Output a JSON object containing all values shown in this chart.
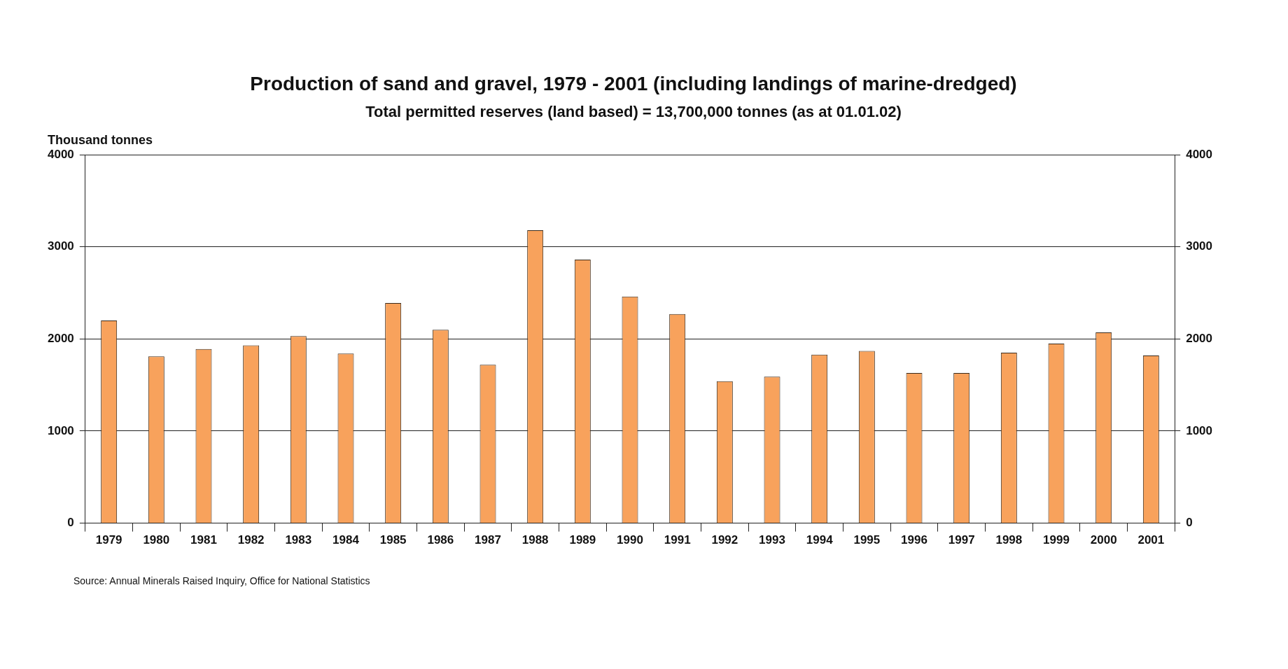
{
  "chart_data": {
    "type": "bar",
    "title": "Production of sand and gravel, 1979 - 2001 (including landings of marine-dredged)",
    "subtitle": "Total permitted reserves (land based) = 13,700,000 tonnes (as at 01.01.02)",
    "ylabel": "Thousand tonnes",
    "annotations": [
      "Source: Annual Minerals Raised Inquiry, Office for National Statistics"
    ],
    "categories": [
      "1979",
      "1980",
      "1981",
      "1982",
      "1983",
      "1984",
      "1985",
      "1986",
      "1987",
      "1988",
      "1989",
      "1990",
      "1991",
      "1992",
      "1993",
      "1994",
      "1995",
      "1996",
      "1997",
      "1998",
      "1999",
      "2000",
      "2001"
    ],
    "series": [
      {
        "color": "#f8a25c",
        "values": [
          2200,
          1810,
          1890,
          1930,
          2030,
          1840,
          2390,
          2100,
          1720,
          3180,
          2860,
          2460,
          2270,
          1540,
          1590,
          1830,
          1870,
          1630,
          1630,
          1850,
          1950,
          2070,
          1820
        ]
      }
    ],
    "ylim": [
      0,
      4000
    ],
    "yticks": [
      0,
      1000,
      2000,
      3000,
      4000
    ],
    "y2lim": [
      0,
      4000
    ],
    "y2ticks": [
      0,
      1000,
      2000,
      3000,
      4000
    ],
    "grid": "y",
    "legend": false
  }
}
